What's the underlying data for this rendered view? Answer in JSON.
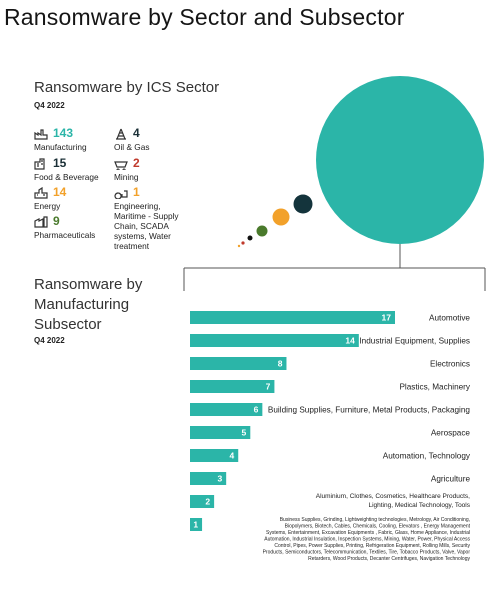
{
  "page": {
    "title": "Ransomware by Sector and Subsector"
  },
  "sector_section": {
    "title": "Ransomware by ICS Sector",
    "period": "Q4 2022"
  },
  "subsector_section": {
    "title_lines": [
      "Ransomware by",
      "Manufacturing",
      "Subsector"
    ],
    "period": "Q4 2022"
  },
  "legend": [
    {
      "icon": "factory-icon",
      "value": "143",
      "label_lines": [
        "Manufacturing"
      ],
      "color": "#2bb5a8"
    },
    {
      "icon": "oil-rig-icon",
      "value": "4",
      "label_lines": [
        "Oil & Gas"
      ],
      "color": "#1a2f36"
    },
    {
      "icon": "food-factory-icon",
      "value": "15",
      "label_lines": [
        "Food & Beverage"
      ],
      "color": "#1a2f36"
    },
    {
      "icon": "mining-cart-icon",
      "value": "2",
      "label_lines": [
        "Mining"
      ],
      "color": "#c0392b"
    },
    {
      "icon": "power-plant-icon",
      "value": "14",
      "label_lines": [
        "Energy"
      ],
      "color": "#f2a12a"
    },
    {
      "icon": "gears-icon",
      "value": "1",
      "label_lines": [
        "Engineering,",
        "Maritime - Supply",
        "Chain, SCADA",
        "systems, Water",
        "treatment"
      ],
      "color": "#f2a12a"
    },
    {
      "icon": "pharma-factory-icon",
      "value": "9",
      "label_lines": [
        "Pharmaceuticals"
      ],
      "color": "#4a7a2c"
    }
  ],
  "chart_data": [
    {
      "type": "bubble",
      "title": "Ransomware by ICS Sector",
      "items": [
        {
          "name": "Manufacturing",
          "value": 143,
          "color": "#2bb5a8"
        },
        {
          "name": "Food & Beverage",
          "value": 15,
          "color": "#14343c"
        },
        {
          "name": "Energy",
          "value": 14,
          "color": "#f2a12a"
        },
        {
          "name": "Pharmaceuticals",
          "value": 9,
          "color": "#4a7a2c"
        },
        {
          "name": "Oil & Gas",
          "value": 4,
          "color": "#111111"
        },
        {
          "name": "Mining",
          "value": 2,
          "color": "#c0392b"
        },
        {
          "name": "Engineering, Maritime - Supply Chain, SCADA systems, Water treatment",
          "value": 1,
          "color": "#f2a12a"
        }
      ]
    },
    {
      "type": "bar",
      "orientation": "horizontal",
      "title": "Ransomware by Manufacturing Subsector",
      "bar_color": "#2bb5a8",
      "xlim": [
        0,
        17
      ],
      "bars": [
        {
          "value": 17,
          "label_lines": [
            "Automotive"
          ]
        },
        {
          "value": 14,
          "label_lines": [
            "Industrial Equipment, Supplies"
          ]
        },
        {
          "value": 8,
          "label_lines": [
            "Electronics"
          ]
        },
        {
          "value": 7,
          "label_lines": [
            "Plastics, Machinery"
          ]
        },
        {
          "value": 6,
          "label_lines": [
            "Building Supplies, Furniture, Metal Products, Packaging"
          ]
        },
        {
          "value": 5,
          "label_lines": [
            "Aerospace"
          ]
        },
        {
          "value": 4,
          "label_lines": [
            "Automation, Technology"
          ]
        },
        {
          "value": 3,
          "label_lines": [
            "Agriculture"
          ]
        },
        {
          "value": 2,
          "label_lines": [
            "Aluminium, Clothes, Cosmetics, Healthcare Products,",
            "Lighting, Medical Technology, Tools"
          ]
        },
        {
          "value": 1,
          "label_lines": [
            "Business Supplies, Grinding, Lightweighting technologies, Metrology, Air Conditioning,",
            "Biopolymers, Biotech, Cables, Chemicals, Cooling, Elevators , Energy Management",
            "Systems, Entertainment, Excavation Equipments , Fabric, Glass, Home Appliance, Industrial",
            "Automation, Industrial Insulation, Inspection Systems, Mining, Water, Power, Physical Access",
            "Control, Pipes, Power Supplies, Printing, Refrigeration Equipment, Rolling Mills, Security",
            "Products, Semiconductors, Telecommunication, Textiles, Tire, Tobacco Products, Valve, Vapor",
            "Retarders, Wood Products, Decanter Centrifuges, Navigation Technology"
          ]
        }
      ]
    }
  ]
}
